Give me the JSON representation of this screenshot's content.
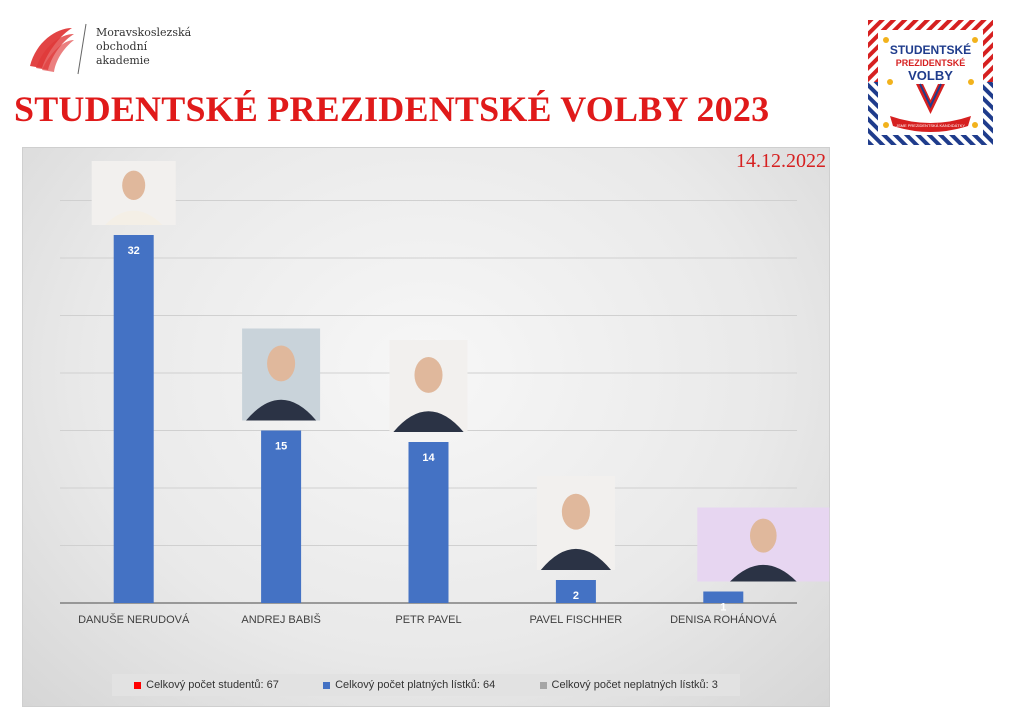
{
  "school": {
    "lines": [
      "Moravskoslezská",
      "obchodní",
      "akademie"
    ],
    "logo_color": "#e03a3a"
  },
  "title": "STUDENTSKÉ PREZIDENTSKÉ VOLBY 2023",
  "badge": {
    "line1": "STUDENTSKÉ",
    "line2": "PREZIDENTSKÉ",
    "line3": "VOLBY",
    "ribbon": "JSME PREZIDENTSKÁ KANDIDÁTKY",
    "icon": "v-ballot-emblem-icon"
  },
  "date": "14.12.2022",
  "colors": {
    "title": "#e01a1a",
    "bar": "#4472c4",
    "legend_students": "#ff0000",
    "legend_valid": "#4472c4",
    "legend_invalid": "#a5a5a5"
  },
  "chart_data": {
    "type": "bar",
    "categories": [
      "DANUŠE NERUDOVÁ",
      "ANDREJ BABIŠ",
      "PETR PAVEL",
      "PAVEL FISCHHER",
      "DENISA ROHÁNOVÁ"
    ],
    "values": [
      32,
      15,
      14,
      2,
      1
    ],
    "data_labels": [
      "32",
      "15",
      "14",
      "2",
      "1"
    ],
    "candidate_photos": [
      "portrait-icon",
      "portrait-icon",
      "portrait-icon",
      "portrait-icon",
      "portrait-icon"
    ],
    "title": "",
    "xlabel": "",
    "ylabel": "",
    "ylim": [
      0,
      40
    ],
    "grid": true,
    "legend_position": "bottom",
    "legend": [
      "Celkový počet studentů: 67",
      "Celkový počet platných lístků: 64",
      "Celkový počet neplatných lístků: 3"
    ]
  }
}
